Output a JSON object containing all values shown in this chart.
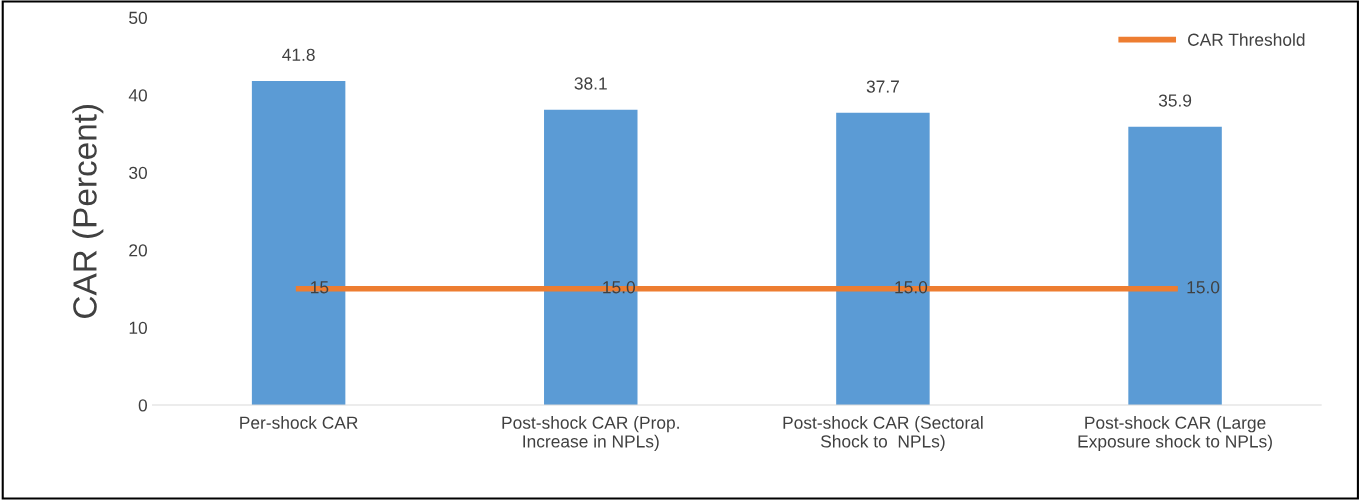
{
  "chart_data": {
    "type": "bar",
    "ylabel": "CAR (Percent)",
    "categories": [
      "Per-shock CAR",
      "Post-shock CAR (Prop.\nIncrease in NPLs)",
      "Post-shock CAR (Sectoral\nShock to  NPLs)",
      "Post-shock CAR (Large\nExposure shock to NPLs)"
    ],
    "series": [
      {
        "color": "#5b9bd5",
        "values": [
          41.8,
          38.1,
          37.7,
          35.9
        ],
        "value_labels": [
          "41.8",
          "38.1",
          "37.7",
          "35.9"
        ]
      },
      {
        "type": "line",
        "name": "CAR Threshold",
        "color": "#ed7d31",
        "values": [
          15,
          15,
          15,
          15
        ],
        "value_labels": [
          "15",
          "15.0",
          "15.0",
          "15.0"
        ]
      }
    ],
    "ylim": [
      0,
      50
    ],
    "yticks": [
      0,
      10,
      20,
      30,
      40,
      50
    ],
    "grid": false,
    "legend": "top right",
    "marker": "none",
    "line_style": "solid"
  }
}
